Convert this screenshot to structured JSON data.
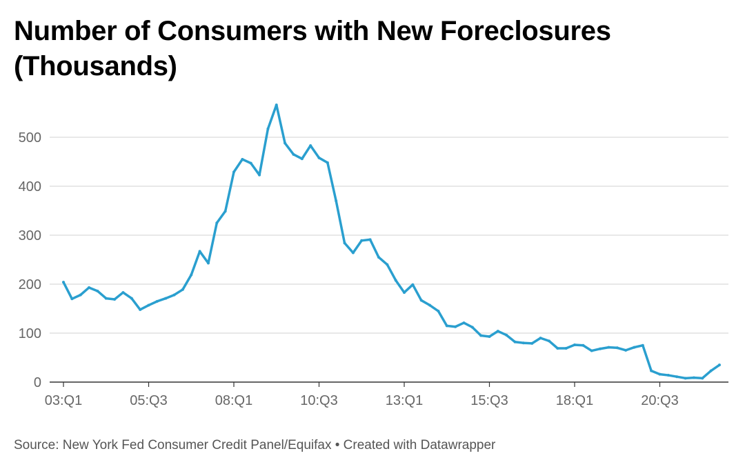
{
  "title": "Number of Consumers with New Foreclosures (Thousands)",
  "footer": {
    "source": "Source: New York Fed Consumer Credit Panel/Equifax",
    "separator": " • ",
    "credit": "Created with Datawrapper"
  },
  "colors": {
    "line": "#2a9fcf",
    "grid": "#d9d9d9",
    "axis": "#333333",
    "tick_text": "#666666"
  },
  "chart_data": {
    "type": "line",
    "title": "Number of Consumers with New Foreclosures (Thousands)",
    "xlabel": "",
    "ylabel": "",
    "ylim": [
      0,
      580
    ],
    "yticks": [
      0,
      100,
      200,
      300,
      400,
      500
    ],
    "grid": true,
    "legend": "none",
    "x_tick_labels": [
      "03:Q1",
      "05:Q3",
      "08:Q1",
      "10:Q3",
      "13:Q1",
      "15:Q3",
      "18:Q1",
      "20:Q3"
    ],
    "x": [
      "03:Q1",
      "03:Q2",
      "03:Q3",
      "03:Q4",
      "04:Q1",
      "04:Q2",
      "04:Q3",
      "04:Q4",
      "05:Q1",
      "05:Q2",
      "05:Q3",
      "05:Q4",
      "06:Q1",
      "06:Q2",
      "06:Q3",
      "06:Q4",
      "07:Q1",
      "07:Q2",
      "07:Q3",
      "07:Q4",
      "08:Q1",
      "08:Q2",
      "08:Q3",
      "08:Q4",
      "09:Q1",
      "09:Q2",
      "09:Q3",
      "09:Q4",
      "10:Q1",
      "10:Q2",
      "10:Q3",
      "10:Q4",
      "11:Q1",
      "11:Q2",
      "11:Q3",
      "11:Q4",
      "12:Q1",
      "12:Q2",
      "12:Q3",
      "12:Q4",
      "13:Q1",
      "13:Q2",
      "13:Q3",
      "13:Q4",
      "14:Q1",
      "14:Q2",
      "14:Q3",
      "14:Q4",
      "15:Q1",
      "15:Q2",
      "15:Q3",
      "15:Q4",
      "16:Q1",
      "16:Q2",
      "16:Q3",
      "16:Q4",
      "17:Q1",
      "17:Q2",
      "17:Q3",
      "17:Q4",
      "18:Q1",
      "18:Q2",
      "18:Q3",
      "18:Q4",
      "19:Q1",
      "19:Q2",
      "19:Q3",
      "19:Q4",
      "20:Q1",
      "20:Q2",
      "20:Q3",
      "20:Q4",
      "21:Q1",
      "21:Q2",
      "21:Q3",
      "21:Q4",
      "22:Q1",
      "22:Q2"
    ],
    "series": [
      {
        "values": [
          204,
          170,
          178,
          193,
          186,
          171,
          169,
          183,
          171,
          148,
          157,
          165,
          171,
          178,
          189,
          219,
          267,
          243,
          325,
          349,
          429,
          455,
          447,
          423,
          517,
          566,
          488,
          465,
          456,
          483,
          458,
          448,
          370,
          284,
          264,
          289,
          291,
          255,
          240,
          208,
          183,
          199,
          167,
          157,
          145,
          115,
          113,
          121,
          112,
          95,
          93,
          104,
          96,
          82,
          80,
          79,
          90,
          84,
          69,
          69,
          76,
          75,
          64,
          68,
          71,
          70,
          65,
          71,
          75,
          23,
          16,
          14,
          11,
          8,
          9,
          8,
          23,
          35
        ]
      }
    ]
  }
}
